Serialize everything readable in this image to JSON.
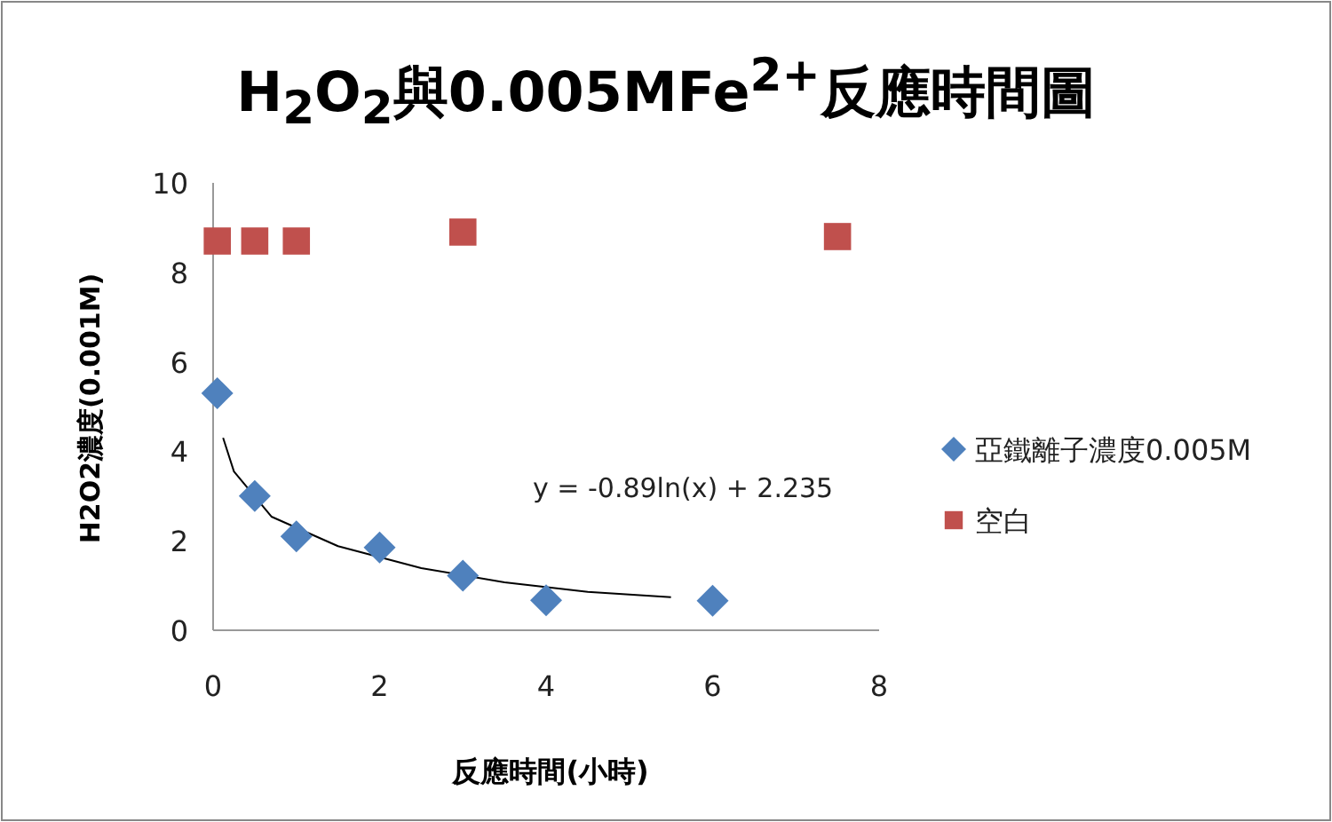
{
  "chart_data": {
    "type": "scatter",
    "title": "H$_{2}$O$_{2}$與0.005MFe$^{2+}$反應時間圖",
    "xlabel": "反應時間(小時)",
    "ylabel": "H2O2濃度(0.001M)",
    "xlim": [
      0,
      8
    ],
    "xticks": [
      0,
      2,
      4,
      6,
      8
    ],
    "ylim": [
      0,
      10
    ],
    "yticks": [
      0,
      2,
      4,
      6,
      8,
      10
    ],
    "grid": false,
    "legend": "right",
    "annotations": [
      "y = -0.89ln(x) + 2.235"
    ],
    "series": [
      {
        "name": "亞鐵離子濃度0.005M",
        "color": "#4f81bd",
        "marker": "diamond",
        "x": [
          0.05,
          0.5,
          1,
          2,
          3,
          4,
          6
        ],
        "values": [
          5.3,
          3.0,
          2.1,
          1.85,
          1.22,
          0.67,
          0.66
        ]
      },
      {
        "name": "空白",
        "color": "#c0504d",
        "marker": "square",
        "x": [
          0.05,
          0.5,
          1,
          3,
          7.5
        ],
        "values": [
          8.7,
          8.7,
          8.7,
          8.9,
          8.8
        ]
      },
      {
        "type": "line",
        "color": "#000000",
        "marker": "none",
        "x": [
          0.12,
          0.25,
          0.7,
          1.5,
          2.5,
          3.5,
          4.5,
          5.5
        ],
        "values": [
          4.3,
          3.55,
          2.54,
          1.88,
          1.39,
          1.07,
          0.86,
          0.74
        ]
      }
    ]
  }
}
